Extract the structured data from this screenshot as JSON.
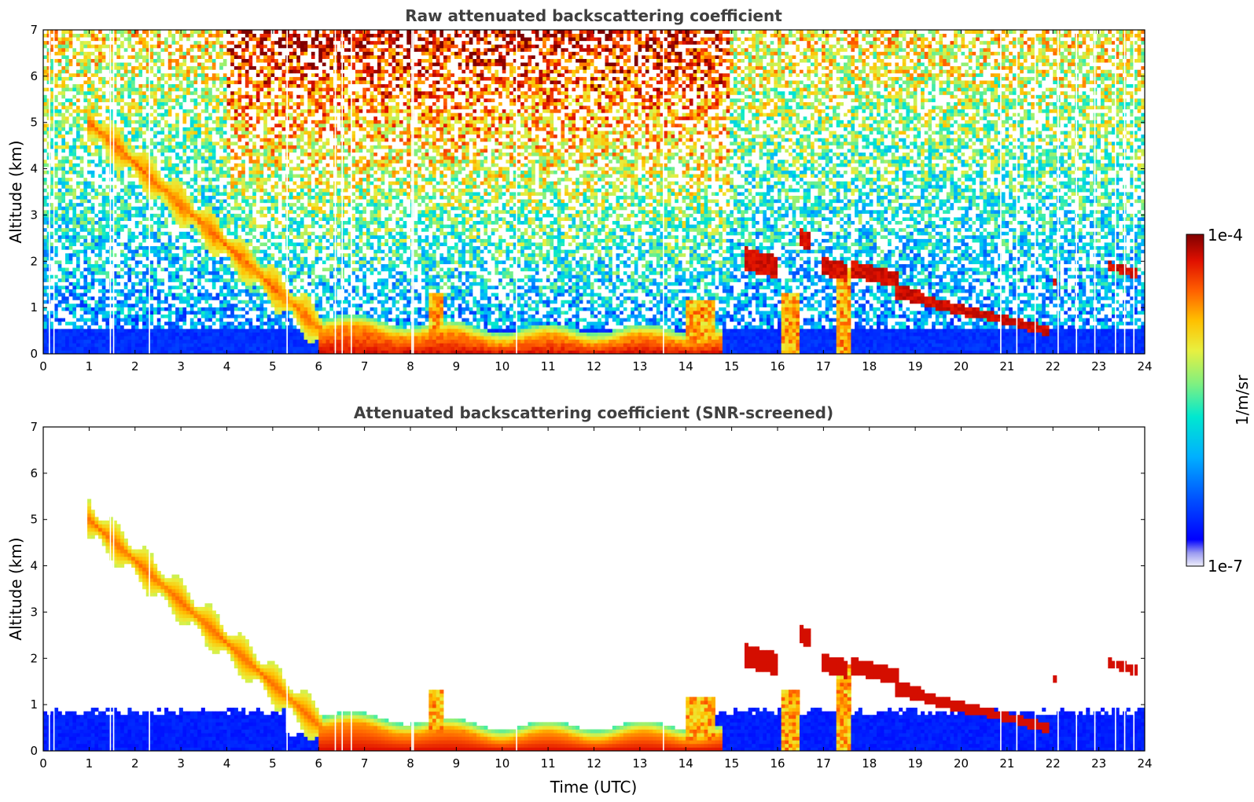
{
  "chart_data": [
    {
      "type": "heatmap",
      "title": "Raw attenuated backscattering coefficient",
      "xlabel": "",
      "ylabel": "Altitude (km)",
      "xlim": [
        0,
        24
      ],
      "ylim": [
        0,
        7
      ],
      "xticks": [
        "0",
        "1",
        "2",
        "3",
        "4",
        "5",
        "6",
        "7",
        "8",
        "9",
        "10",
        "11",
        "12",
        "13",
        "14",
        "15",
        "16",
        "17",
        "18",
        "19",
        "20",
        "21",
        "22",
        "23",
        "24"
      ],
      "yticks": [
        "0",
        "1",
        "2",
        "3",
        "4",
        "5",
        "6",
        "7"
      ],
      "colormap": "jet",
      "scale": "log",
      "background_noise_level": "high above ~3 km, low near surface",
      "features": [
        {
          "name": "descending cloud band",
          "time": [
            1.0,
            6.2
          ],
          "altitude": [
            5.0,
            0.3
          ],
          "level": "mid-high"
        },
        {
          "name": "boundary layer top",
          "time": [
            6.2,
            14.8
          ],
          "altitude": [
            0.6,
            0.3
          ],
          "level": "high"
        },
        {
          "name": "scattered clouds",
          "time": [
            15.3,
            17.0
          ],
          "altitude": [
            2.2,
            0.5
          ],
          "level": "very high"
        },
        {
          "name": "cloud layer",
          "time": [
            17.5,
            19.2
          ],
          "altitude": [
            2.1,
            1.1
          ],
          "level": "very high"
        },
        {
          "name": "cloud layer",
          "time": [
            19.2,
            21.9
          ],
          "altitude": [
            1.2,
            0.8
          ],
          "level": "very high"
        },
        {
          "name": "cloud layer",
          "time": [
            23.2,
            23.8
          ],
          "altitude": [
            1.9,
            1.9
          ],
          "level": "very high"
        }
      ]
    },
    {
      "type": "heatmap",
      "title": "Attenuated backscattering coefficient (SNR-screened)",
      "xlabel": "Time (UTC)",
      "ylabel": "Altitude (km)",
      "xlim": [
        0,
        24
      ],
      "ylim": [
        0,
        7
      ],
      "xticks": [
        "0",
        "1",
        "2",
        "3",
        "4",
        "5",
        "6",
        "7",
        "8",
        "9",
        "10",
        "11",
        "12",
        "13",
        "14",
        "15",
        "16",
        "17",
        "18",
        "19",
        "20",
        "21",
        "22",
        "23",
        "24"
      ],
      "yticks": [
        "0",
        "1",
        "2",
        "3",
        "4",
        "5",
        "6",
        "7"
      ],
      "colormap": "jet",
      "scale": "log",
      "background_noise_level": "screened (white)"
    }
  ],
  "colorbar": {
    "label": "1/m/sr",
    "max_label": "1e-4",
    "min_label": "1e-7",
    "colors": [
      "#e8e8f8",
      "#b8b8f0",
      "#8080f0",
      "#0000ff",
      "#0060ff",
      "#00b8ff",
      "#00e8d8",
      "#60f0a0",
      "#c8f050",
      "#ffe000",
      "#ff8000",
      "#ff2000",
      "#c00000",
      "#800000"
    ]
  }
}
